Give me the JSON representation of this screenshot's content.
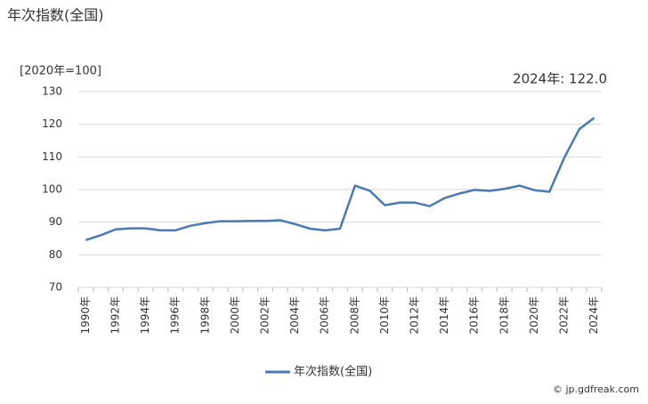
{
  "chart_data": {
    "type": "line",
    "title": "年次指数(全国)",
    "y_label": "[2020年=100]",
    "annotation": "2024年: 122.0",
    "source": "© jp.gdfreak.com",
    "categories": [
      "1990年",
      null,
      "1992年",
      null,
      "1994年",
      null,
      "1996年",
      null,
      "1998年",
      null,
      "2000年",
      null,
      "2002年",
      null,
      "2004年",
      null,
      "2006年",
      null,
      "2008年",
      null,
      "2010年",
      null,
      "2012年",
      null,
      "2014年",
      null,
      "2016年",
      null,
      "2018年",
      null,
      "2020年",
      null,
      "2022年",
      null,
      "2024年"
    ],
    "series": [
      {
        "name": "年次指数(全国)",
        "color": "#4a7ab5",
        "values": [
          84.5,
          86.0,
          87.8,
          88.1,
          88.1,
          87.5,
          87.5,
          88.9,
          89.7,
          90.3,
          90.3,
          90.4,
          90.4,
          90.6,
          89.4,
          88.0,
          87.5,
          88.0,
          101.2,
          99.6,
          95.2,
          96.0,
          96.0,
          94.9,
          97.4,
          98.8,
          99.9,
          99.6,
          100.2,
          101.2,
          99.8,
          99.3,
          109.8,
          118.5,
          122.0
        ]
      }
    ],
    "ylim": [
      70,
      130
    ],
    "yticks": [
      70,
      80,
      90,
      100,
      110,
      120,
      130
    ],
    "grid": true
  }
}
